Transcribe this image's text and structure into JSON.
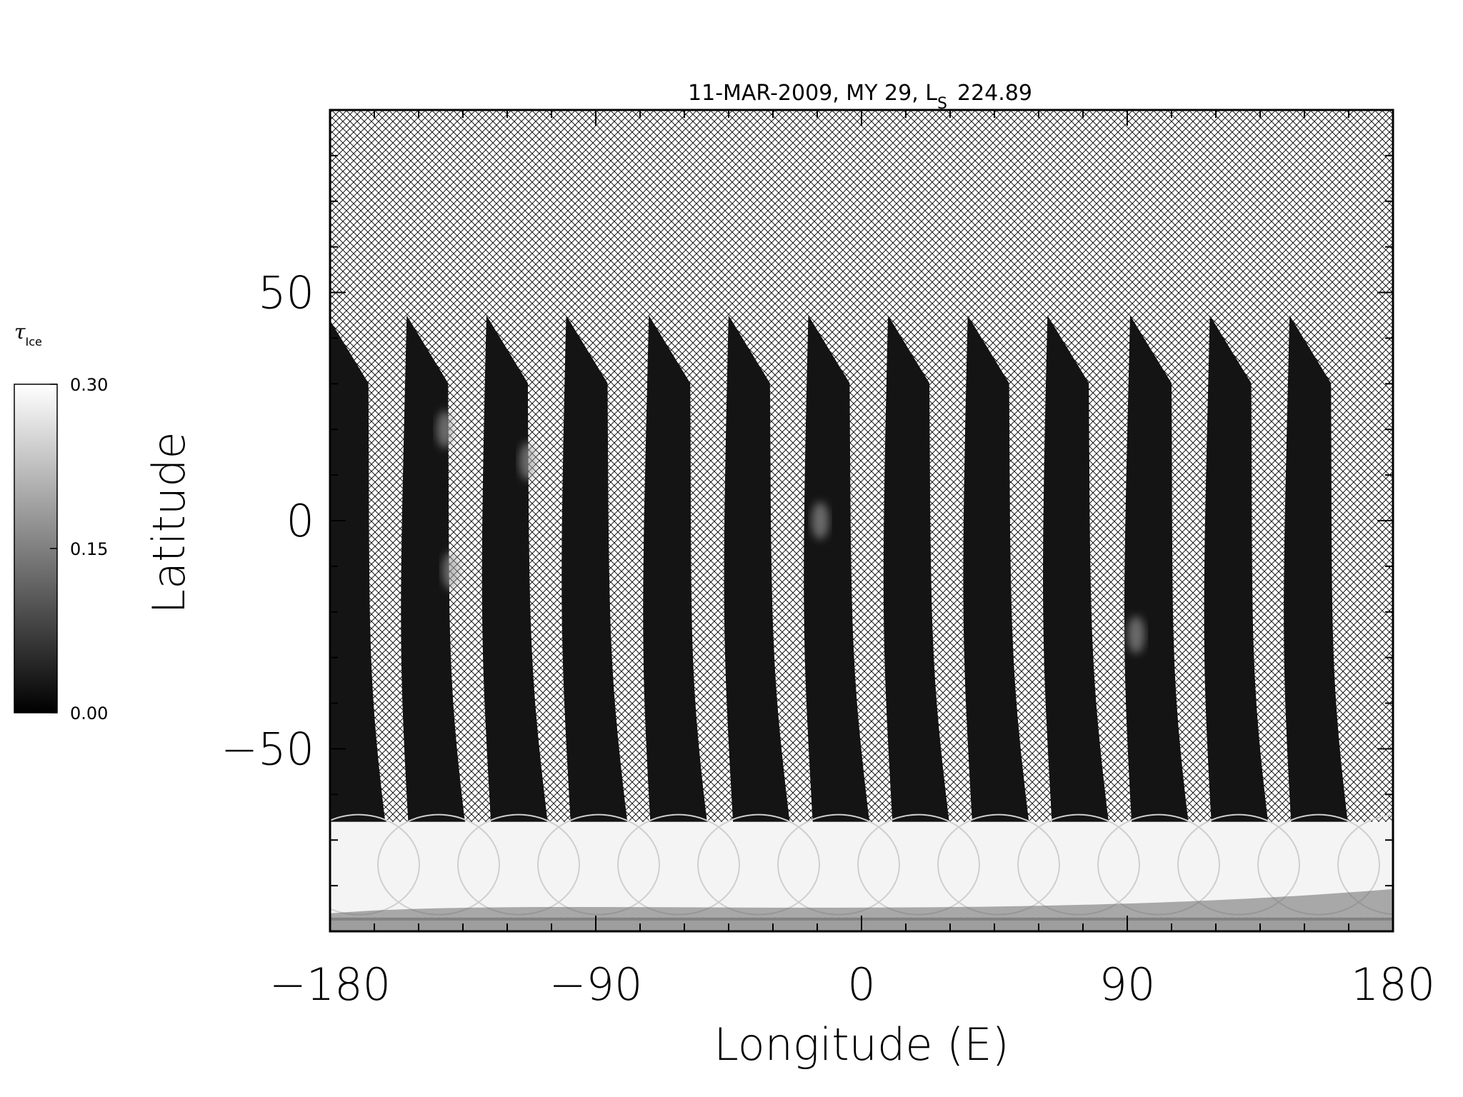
{
  "chart_data": {
    "type": "heatmap",
    "title": "11-MAR-2009, MY 29,  L",
    "title_subscript": "S",
    "title_value": "224.89",
    "xlabel": "Longitude (E)",
    "ylabel": "Latitude",
    "xlim": [
      -180,
      180
    ],
    "ylim": [
      -90,
      90
    ],
    "xticks": [
      -180,
      -90,
      0,
      90,
      180
    ],
    "xtick_labels": [
      "−180",
      "−90",
      "0",
      "90",
      "180"
    ],
    "yticks": [
      -50,
      0,
      50
    ],
    "ytick_labels": [
      "−50",
      "0",
      "50"
    ],
    "nodata_pattern": "crosshatch",
    "colormap": "grayscale",
    "colorbar": {
      "label": "τ",
      "label_subscript": "Ice",
      "min": 0.0,
      "max": 0.3,
      "ticks": [
        0.0,
        0.15,
        0.3
      ],
      "tick_labels": [
        "0.00",
        "0.15",
        "0.30"
      ]
    },
    "swaths": [
      {
        "lon_top": -167,
        "lon_bottom": -178,
        "lat_top": 45
      },
      {
        "lon_top": -140,
        "lon_bottom": -151,
        "lat_top": 45
      },
      {
        "lon_top": -113,
        "lon_bottom": -123,
        "lat_top": 45
      },
      {
        "lon_top": -86,
        "lon_bottom": -96,
        "lat_top": 45
      },
      {
        "lon_top": -58,
        "lon_bottom": -69,
        "lat_top": 45
      },
      {
        "lon_top": -31,
        "lon_bottom": -41,
        "lat_top": 45
      },
      {
        "lon_top": -4,
        "lon_bottom": -14,
        "lat_top": 45
      },
      {
        "lon_top": 23,
        "lon_bottom": 13,
        "lat_top": 45
      },
      {
        "lon_top": 50,
        "lon_bottom": 40,
        "lat_top": 45
      },
      {
        "lon_top": 77,
        "lon_bottom": 67,
        "lat_top": 45
      },
      {
        "lon_top": 105,
        "lon_bottom": 94,
        "lat_top": 45
      },
      {
        "lon_top": 132,
        "lon_bottom": 121,
        "lat_top": 45
      },
      {
        "lon_top": 159,
        "lon_bottom": 148,
        "lat_top": 45
      }
    ],
    "polar_hood": {
      "lat_top": -66,
      "lat_bottom": -87
    },
    "bright_features": [
      {
        "lon": -139,
        "lat": -11
      },
      {
        "lon": -141,
        "lat": 20
      },
      {
        "lon": -113,
        "lat": 13
      },
      {
        "lon": -14,
        "lat": 0
      },
      {
        "lon": 93,
        "lat": -25
      }
    ]
  }
}
